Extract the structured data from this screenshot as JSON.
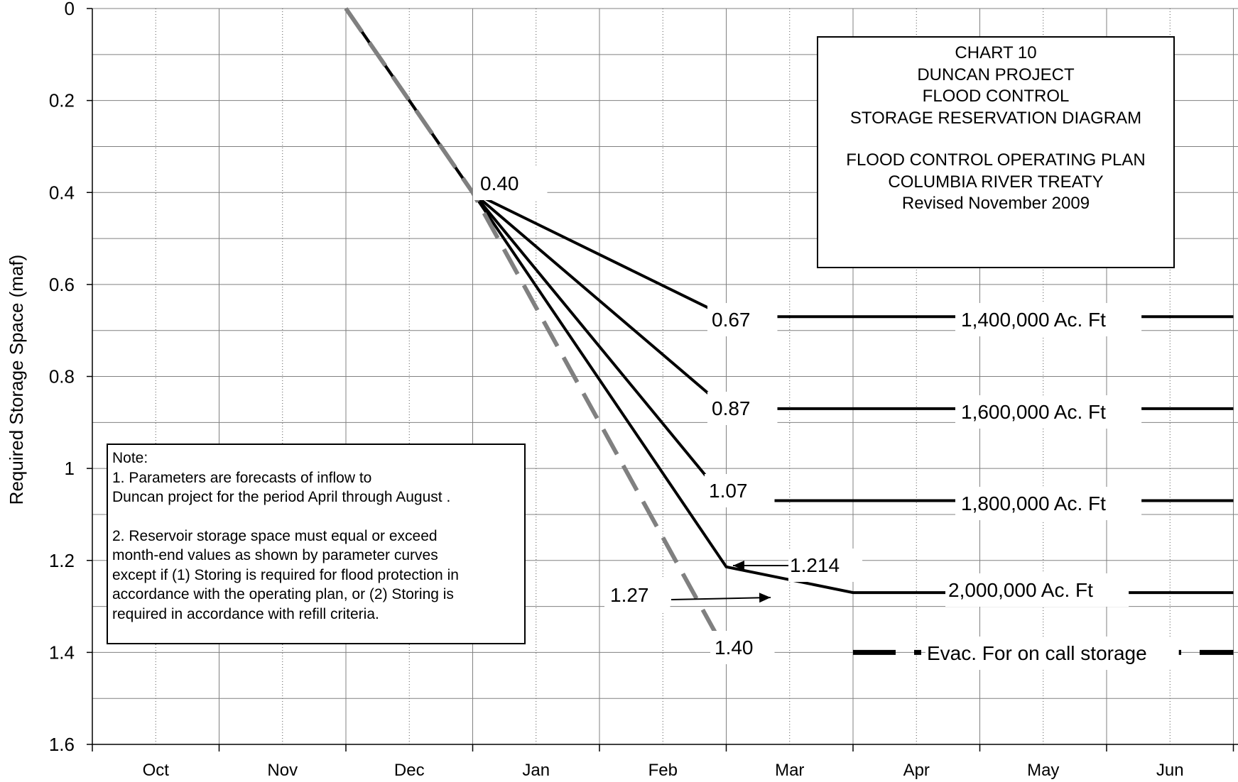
{
  "chart_data": {
    "type": "line",
    "ylabel": "Required Storage Space (maf)",
    "xlabel": "",
    "categories": [
      "Oct",
      "Nov",
      "Dec",
      "Jan",
      "Feb",
      "Mar",
      "Apr",
      "May",
      "Jun"
    ],
    "ylim": [
      1.6,
      0
    ],
    "y_inverted": true,
    "y_ticks": [
      "0",
      "0.2",
      "0.4",
      "0.6",
      "0.8",
      "1",
      "1.2",
      "1.4",
      "1.6"
    ],
    "grid": true,
    "series": [
      {
        "style": "black-solid",
        "points": [
          [
            "Nov-30",
            0
          ],
          [
            "Dec-31",
            0.4
          ],
          [
            "Feb-28",
            0.67
          ],
          [
            "Jun-30",
            0.67
          ]
        ]
      },
      {
        "style": "black-solid",
        "points": [
          [
            "Nov-30",
            0
          ],
          [
            "Dec-31",
            0.4
          ],
          [
            "Feb-28",
            0.87
          ],
          [
            "Jun-30",
            0.87
          ]
        ]
      },
      {
        "style": "black-solid",
        "points": [
          [
            "Nov-30",
            0
          ],
          [
            "Dec-31",
            0.4
          ],
          [
            "Feb-28",
            1.07
          ],
          [
            "Jun-30",
            1.07
          ]
        ]
      },
      {
        "style": "black-solid",
        "points": [
          [
            "Nov-30",
            0
          ],
          [
            "Dec-31",
            0.4
          ],
          [
            "Feb-28",
            1.214
          ],
          [
            "Mar-31",
            1.27
          ],
          [
            "Jun-30",
            1.27
          ]
        ]
      },
      {
        "style": "gray-dashed",
        "points": [
          [
            "Nov-30",
            0
          ],
          [
            "Dec-31",
            0.4
          ],
          [
            "Feb-28",
            1.4
          ]
        ]
      },
      {
        "style": "black-dashed",
        "points": [
          [
            "Mar-31",
            1.4
          ],
          [
            "Jun-30",
            1.4
          ]
        ]
      }
    ],
    "value_labels": [
      "0.40",
      "0.67",
      "0.87",
      "1.07",
      "1.214",
      "1.27",
      "1.40"
    ],
    "curve_labels": [
      "1,400,000 Ac. Ft",
      "1,600,000 Ac. Ft",
      "1,800,000 Ac. Ft",
      "2,000,000 Ac. Ft",
      "Evac. For on call storage"
    ]
  },
  "title_box": {
    "line1": "CHART 10",
    "line2": "DUNCAN PROJECT",
    "line3": "FLOOD CONTROL",
    "line4": "STORAGE RESERVATION DIAGRAM",
    "line5": "FLOOD CONTROL OPERATING PLAN",
    "line6": "COLUMBIA RIVER TREATY",
    "line7": "Revised November 2009"
  },
  "note_box": {
    "heading": "Note:",
    "l1": "1.  Parameters are forecasts of inflow to",
    "l2": "Duncan project for the period April through August .",
    "l3": "2.  Reservoir storage space must equal or exceed",
    "l4": "month-end values as shown by parameter curves",
    "l5": "except if (1) Storing is required for flood protection in",
    "l6": "accordance with the operating plan, or (2) Storing is",
    "l7": "required in accordance with refill criteria."
  }
}
